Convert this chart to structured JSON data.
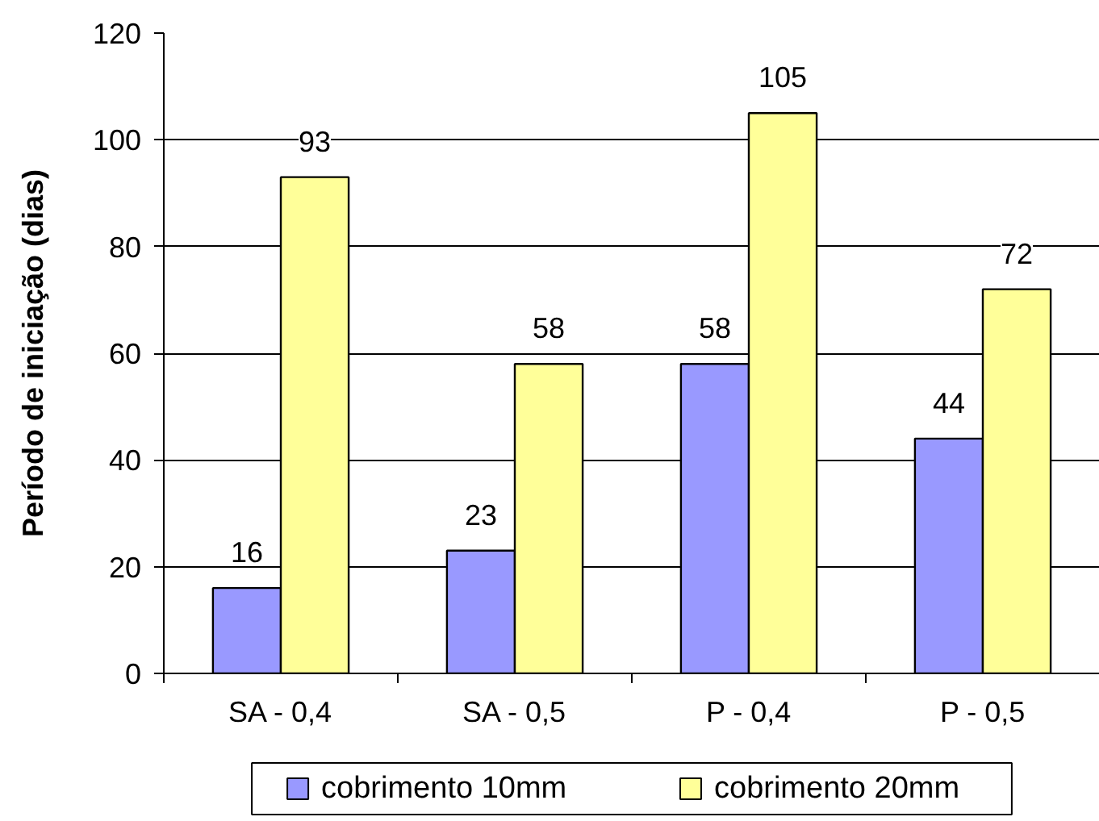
{
  "chart_data": {
    "type": "bar",
    "ylabel": "Período de iniciação (dias)",
    "categories": [
      "SA - 0,4",
      "SA - 0,5",
      "P - 0,4",
      "P - 0,5"
    ],
    "series": [
      {
        "name": "cobrimento 10mm",
        "color": "#9999ff",
        "values": [
          16,
          23,
          58,
          44
        ]
      },
      {
        "name": "cobrimento 20mm",
        "color": "#ffff99",
        "values": [
          93,
          58,
          105,
          72
        ]
      }
    ],
    "ylim": [
      0,
      120
    ],
    "yticks": [
      0,
      20,
      40,
      60,
      80,
      100,
      120
    ],
    "grid": "y",
    "legend": "bottom",
    "data_labels": true
  }
}
